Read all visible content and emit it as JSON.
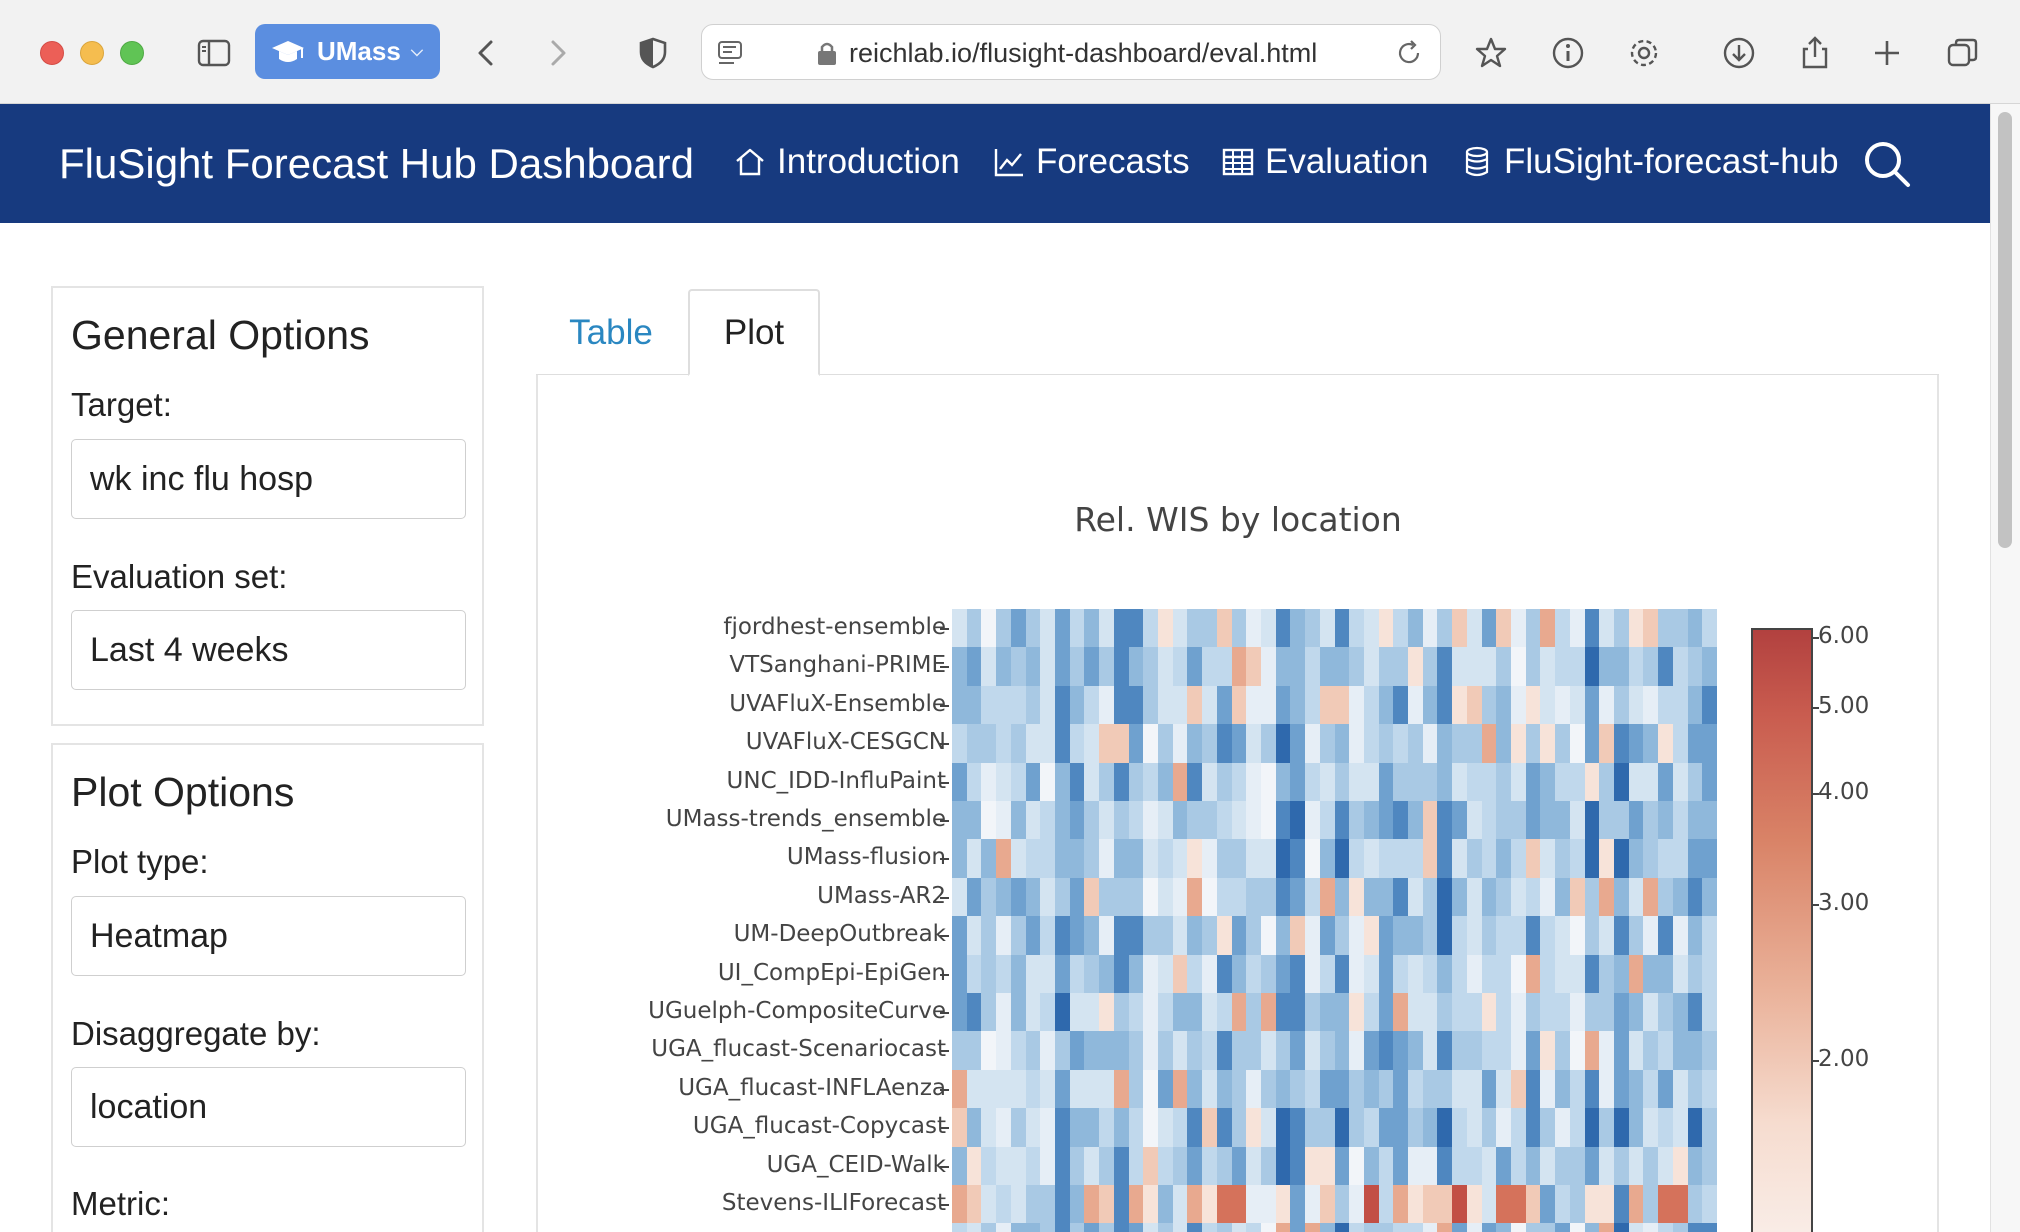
{
  "browser": {
    "profile_label": "UMass",
    "url": "reichlab.io/flusight-dashboard/eval.html"
  },
  "navbar": {
    "brand": "FluSight Forecast Hub Dashboard",
    "items": [
      {
        "label": "Introduction",
        "icon": "home-icon"
      },
      {
        "label": "Forecasts",
        "icon": "chart-line-icon"
      },
      {
        "label": "Evaluation",
        "icon": "table-icon"
      },
      {
        "label": "FluSight-forecast-hub",
        "icon": "database-icon"
      }
    ]
  },
  "sidebar": {
    "general": {
      "title": "General Options",
      "target_label": "Target:",
      "target_value": "wk inc flu hosp",
      "evalset_label": "Evaluation set:",
      "evalset_value": "Last 4 weeks"
    },
    "plot": {
      "title": "Plot Options",
      "plottype_label": "Plot type:",
      "plottype_value": "Heatmap",
      "disagg_label": "Disaggregate by:",
      "disagg_value": "location",
      "metric_label": "Metric:"
    }
  },
  "tabs": [
    {
      "label": "Table",
      "active": false
    },
    {
      "label": "Plot",
      "active": true
    }
  ],
  "colors": {
    "navbar": "#173a7f",
    "link": "#2a87c1",
    "heat_high": "#b2413f",
    "heat_low": "#2f69ad"
  },
  "chart_data": {
    "type": "heatmap",
    "title": "Rel. WIS by location",
    "x_categories_visible": false,
    "y_categories": [
      "fjordhest-ensemble",
      "VTSanghani-PRIME",
      "UVAFluX-Ensemble",
      "UVAFluX-CESGCN",
      "UNC_IDD-InfluPaint",
      "UMass-trends_ensemble",
      "UMass-flusion",
      "UMass-AR2",
      "UM-DeepOutbreak",
      "UI_CompEpi-EpiGen",
      "UGuelph-CompositeCurve",
      "UGA_flucast-Scenariocast",
      "UGA_flucast-INFLAenza",
      "UGA_flucast-Copycast",
      "UGA_CEID-Walk",
      "Stevens-ILIForecast"
    ],
    "colorbar": {
      "ticks": [
        "6.00",
        "5.00",
        "4.00",
        "3.00",
        "2.00"
      ],
      "scale": "log",
      "colors": [
        "#b2413f",
        "#d98367",
        "#f9ece6",
        "#dbe9f3",
        "#2f69ad"
      ]
    },
    "grid": false,
    "legend": "right"
  }
}
